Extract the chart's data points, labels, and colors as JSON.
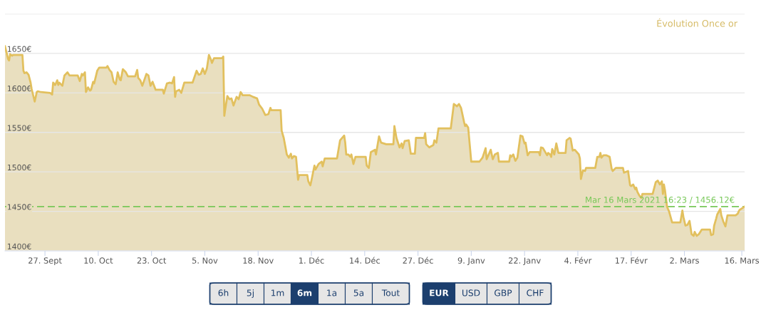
{
  "chart_data": {
    "type": "area",
    "title": "Évolution Once or",
    "color": "#e2c05e",
    "grid": "y",
    "xlim": [
      "2020-09-17T06:00",
      "2021-03-16T16:23"
    ],
    "ylim": [
      1400,
      1700
    ],
    "xticks": [
      {
        "value": "2020-09-27",
        "label": "27. Sept"
      },
      {
        "value": "2020-10-10",
        "label": "10. Oct"
      },
      {
        "value": "2020-10-23",
        "label": "23. Oct"
      },
      {
        "value": "2020-11-05",
        "label": "5. Nov"
      },
      {
        "value": "2020-11-18",
        "label": "18. Nov"
      },
      {
        "value": "2020-12-01",
        "label": "1. Déc"
      },
      {
        "value": "2020-12-14",
        "label": "14. Déc"
      },
      {
        "value": "2020-12-27",
        "label": "27. Déc"
      },
      {
        "value": "2021-01-09",
        "label": "9. Janv"
      },
      {
        "value": "2021-01-22",
        "label": "22. Janv"
      },
      {
        "value": "2021-02-04",
        "label": "4. Févr"
      },
      {
        "value": "2021-02-17",
        "label": "17. Févr"
      },
      {
        "value": "2021-03-02",
        "label": "2. Mars"
      },
      {
        "value": "2021-03-16",
        "label": "16. Mars"
      }
    ],
    "yticks": [
      {
        "value": 1400,
        "label": "1400€"
      },
      {
        "value": 1450,
        "label": "1450€"
      },
      {
        "value": 1500,
        "label": "1500€"
      },
      {
        "value": 1550,
        "label": "1550€"
      },
      {
        "value": 1600,
        "label": "1600€"
      },
      {
        "value": 1650,
        "label": "1650€"
      },
      {
        "value": 1700,
        "label": null
      }
    ],
    "ref_lines": [
      {
        "axis": "y",
        "value": 1456.12,
        "label": "Mar 16 Mars 2021 16:23 / 1456.12€",
        "color": "#78c858",
        "line_style": "dashed"
      }
    ],
    "annotations": [
      "6h",
      "5j",
      "1m",
      "6m",
      "1a",
      "5a",
      "Tout",
      "EUR",
      "USD",
      "GBP",
      "CHF"
    ],
    "x": [
      "2020-09-17T06:00",
      "2020-09-18",
      "2020-09-18T06:00",
      "2020-09-18T12:00",
      "2020-09-19",
      "2020-09-19T06:00",
      "2020-09-21T12:00",
      "2020-09-21T18:00",
      "2020-09-22",
      "2020-09-22T12:00",
      "2020-09-23",
      "2020-09-23T12:00",
      "2020-09-23T18:00",
      "2020-09-24T12:00",
      "2020-09-25",
      "2020-09-25T06:00",
      "2020-09-26",
      "2020-09-28T06:00",
      "2020-09-28T18:00",
      "2020-09-29",
      "2020-09-29T12:00",
      "2020-09-30",
      "2020-09-30T06:00",
      "2020-09-30T12:00",
      "2020-10-01T06:00",
      "2020-10-01T18:00",
      "2020-10-02T12:00",
      "2020-10-03",
      "2020-10-05",
      "2020-10-05T12:00",
      "2020-10-06",
      "2020-10-06T06:00",
      "2020-10-06T18:00",
      "2020-10-07",
      "2020-10-07T12:00",
      "2020-10-08",
      "2020-10-08T06:00",
      "2020-10-08T18:00",
      "2020-10-09",
      "2020-10-09T18:00",
      "2020-10-10T06:00",
      "2020-10-12",
      "2020-10-12T06:00",
      "2020-10-12T18:00",
      "2020-10-13T06:00",
      "2020-10-13T18:00",
      "2020-10-14T06:00",
      "2020-10-14T18:00",
      "2020-10-15T06:00",
      "2020-10-15T12:00",
      "2020-10-16",
      "2020-10-16T18:00",
      "2020-10-17T06:00",
      "2020-10-19",
      "2020-10-19T12:00",
      "2020-10-19T18:00",
      "2020-10-20T06:00",
      "2020-10-20T18:00",
      "2020-10-21T18:00",
      "2020-10-22T06:00",
      "2020-10-22T18:00",
      "2020-10-23T06:00",
      "2020-10-24",
      "2020-10-25T18:00",
      "2020-10-26",
      "2020-10-26T18:00",
      "2020-10-27T12:00",
      "2020-10-28",
      "2020-10-28T12:00",
      "2020-10-28T18:00",
      "2020-10-29",
      "2020-10-29T18:00",
      "2020-10-30T06:00",
      "2020-10-31",
      "2020-11-02",
      "2020-11-03",
      "2020-11-03T12:00",
      "2020-11-04",
      "2020-11-04T12:00",
      "2020-11-05",
      "2020-11-05T12:00",
      "2020-11-06",
      "2020-11-06T12:00",
      "2020-11-06T18:00",
      "2020-11-07T06:00",
      "2020-11-09T06:00",
      "2020-11-09T12:00",
      "2020-11-09T18:00",
      "2020-11-10",
      "2020-11-10T12:00",
      "2020-11-11",
      "2020-11-11T12:00",
      "2020-11-12",
      "2020-11-12T18:00",
      "2020-11-13T06:00",
      "2020-11-13T18:00",
      "2020-11-14T06:00",
      "2020-11-16",
      "2020-11-16T18:00",
      "2020-11-17T18:00",
      "2020-11-18T06:00",
      "2020-11-19",
      "2020-11-19T18:00",
      "2020-11-20T12:00",
      "2020-11-21",
      "2020-11-21T06:00",
      "2020-11-23T12:00",
      "2020-11-23T18:00",
      "2020-11-24T06:00",
      "2020-11-25",
      "2020-11-25T12:00",
      "2020-11-26",
      "2020-11-26T06:00",
      "2020-11-26T18:00",
      "2020-11-27T06:00",
      "2020-11-27T18:00",
      "2020-11-28",
      "2020-11-30",
      "2020-11-30T06:00",
      "2020-11-30T18:00",
      "2020-12-01",
      "2020-12-01T18:00",
      "2020-12-02",
      "2020-12-02T18:00",
      "2020-12-03T12:00",
      "2020-12-03T18:00",
      "2020-12-04T06:00",
      "2020-12-07T06:00",
      "2020-12-08",
      "2020-12-09",
      "2020-12-09T06:00",
      "2020-12-09T12:00",
      "2020-12-10",
      "2020-12-10T12:00",
      "2020-12-10T18:00",
      "2020-12-11T06:00",
      "2020-12-11T18:00",
      "2020-12-14T06:00",
      "2020-12-14T12:00",
      "2020-12-15",
      "2020-12-15T12:00",
      "2020-12-16T12:00",
      "2020-12-16T18:00",
      "2020-12-17T12:00",
      "2020-12-18",
      "2020-12-19T06:00",
      "2020-12-21",
      "2020-12-21T06:00",
      "2020-12-21T18:00",
      "2020-12-22T12:00",
      "2020-12-23",
      "2020-12-23T06:00",
      "2020-12-23T18:00",
      "2020-12-24T18:00",
      "2020-12-25T06:00",
      "2020-12-26T06:00",
      "2020-12-26T12:00",
      "2020-12-28T12:00",
      "2020-12-28T18:00",
      "2020-12-29",
      "2020-12-29T18:00",
      "2020-12-30T18:00",
      "2020-12-31",
      "2020-12-31T12:00",
      "2021-01-01",
      "2021-01-04",
      "2021-01-04T18:00",
      "2021-01-05T12:00",
      "2021-01-06",
      "2021-01-06T12:00",
      "2021-01-07T06:00",
      "2021-01-07T12:00",
      "2021-01-07T18:00",
      "2021-01-08T06:00",
      "2021-01-09",
      "2021-01-11",
      "2021-01-11T18:00",
      "2021-01-12T12:00",
      "2021-01-12T18:00",
      "2021-01-13T18:00",
      "2021-01-14T06:00",
      "2021-01-14T18:00",
      "2021-01-15T12:00",
      "2021-01-15T18:00",
      "2021-01-18T06:00",
      "2021-01-18T12:00",
      "2021-01-18T18:00",
      "2021-01-19T06:00",
      "2021-01-19T18:00",
      "2021-01-20T06:00",
      "2021-01-21",
      "2021-01-21T12:00",
      "2021-01-22",
      "2021-01-22T06:00",
      "2021-01-22T18:00",
      "2021-01-23T06:00",
      "2021-01-25T12:00",
      "2021-01-25T18:00",
      "2021-01-26",
      "2021-01-26T12:00",
      "2021-01-27T12:00",
      "2021-01-27T18:00",
      "2021-01-28T06:00",
      "2021-01-28T12:00",
      "2021-01-28T18:00",
      "2021-01-29T06:00",
      "2021-01-29T18:00",
      "2021-01-30T06:00",
      "2021-02-01",
      "2021-02-01T06:00",
      "2021-02-02",
      "2021-02-02T06:00",
      "2021-02-02T18:00",
      "2021-02-03T06:00",
      "2021-02-04T06:00",
      "2021-02-04T12:00",
      "2021-02-04T18:00",
      "2021-02-05T06:00",
      "2021-02-05T18:00",
      "2021-02-06",
      "2021-02-08T06:00",
      "2021-02-08T18:00",
      "2021-02-09T06:00",
      "2021-02-09T12:00",
      "2021-02-09T18:00",
      "2021-02-10T06:00",
      "2021-02-11",
      "2021-02-11T18:00",
      "2021-02-12T06:00",
      "2021-02-12T12:00",
      "2021-02-13T06:00",
      "2021-02-15",
      "2021-02-15T06:00",
      "2021-02-16T06:00",
      "2021-02-16T18:00",
      "2021-02-17",
      "2021-02-17T12:00",
      "2021-02-18",
      "2021-02-18T06:00",
      "2021-02-18T12:00",
      "2021-02-19",
      "2021-02-19T12:00",
      "2021-02-19T18:00",
      "2021-02-22T06:00",
      "2021-02-22T12:00",
      "2021-02-23",
      "2021-02-23T12:00",
      "2021-02-24",
      "2021-02-24T12:00",
      "2021-02-24T18:00",
      "2021-02-25",
      "2021-02-25T06:00",
      "2021-02-25T18:00",
      "2021-02-26T06:00",
      "2021-02-27",
      "2021-03-01",
      "2021-03-01T12:00",
      "2021-03-01T18:00",
      "2021-03-02T06:00",
      "2021-03-02T18:00",
      "2021-03-03T06:00",
      "2021-03-03T18:00",
      "2021-03-04T06:00",
      "2021-03-04T12:00",
      "2021-03-05",
      "2021-03-05T12:00",
      "2021-03-06T06:00",
      "2021-03-08T06:00",
      "2021-03-08T12:00",
      "2021-03-09",
      "2021-03-09T06:00",
      "2021-03-09T18:00",
      "2021-03-10",
      "2021-03-10T18:00",
      "2021-03-11",
      "2021-03-11T12:00",
      "2021-03-12",
      "2021-03-12T12:00",
      "2021-03-14T12:00",
      "2021-03-15",
      "2021-03-15T06:00",
      "2021-03-15T12:00",
      "2021-03-16T16:23"
    ],
    "values": [
      1659,
      1643,
      1641,
      1649,
      1647,
      1648,
      1648,
      1628,
      1625,
      1626,
      1623,
      1613,
      1605,
      1589,
      1601,
      1602,
      1601,
      1600,
      1598,
      1613,
      1610,
      1616,
      1610,
      1613,
      1609,
      1622,
      1626,
      1622,
      1622,
      1615,
      1624,
      1622,
      1626,
      1601,
      1607,
      1603,
      1604,
      1614,
      1612,
      1628,
      1632,
      1632,
      1634,
      1629,
      1626,
      1614,
      1611,
      1626,
      1617,
      1616,
      1630,
      1626,
      1621,
      1621,
      1629,
      1619,
      1616,
      1609,
      1624,
      1622,
      1609,
      1614,
      1604,
      1604,
      1599,
      1612,
      1613,
      1612,
      1620,
      1595,
      1602,
      1604,
      1600,
      1613,
      1613,
      1628,
      1623,
      1624,
      1631,
      1624,
      1631,
      1648,
      1642,
      1638,
      1644,
      1644,
      1646,
      1571,
      1580,
      1596,
      1592,
      1593,
      1584,
      1595,
      1592,
      1601,
      1597,
      1597,
      1595,
      1593,
      1585,
      1580,
      1572,
      1573,
      1581,
      1578,
      1578,
      1552,
      1543,
      1522,
      1518,
      1523,
      1517,
      1520,
      1519,
      1490,
      1496,
      1496,
      1488,
      1483,
      1489,
      1508,
      1503,
      1510,
      1513,
      1507,
      1517,
      1517,
      1540,
      1546,
      1537,
      1522,
      1522,
      1519,
      1522,
      1510,
      1519,
      1519,
      1508,
      1505,
      1525,
      1528,
      1522,
      1545,
      1537,
      1535,
      1535,
      1558,
      1543,
      1531,
      1536,
      1530,
      1539,
      1540,
      1523,
      1523,
      1543,
      1543,
      1549,
      1535,
      1531,
      1534,
      1540,
      1537,
      1555,
      1555,
      1586,
      1583,
      1586,
      1581,
      1563,
      1558,
      1560,
      1556,
      1513,
      1513,
      1518,
      1530,
      1516,
      1528,
      1516,
      1522,
      1524,
      1513,
      1513,
      1521,
      1519,
      1522,
      1514,
      1518,
      1546,
      1545,
      1536,
      1537,
      1521,
      1525,
      1525,
      1521,
      1531,
      1530,
      1521,
      1524,
      1522,
      1519,
      1529,
      1522,
      1536,
      1524,
      1524,
      1540,
      1543,
      1542,
      1527,
      1528,
      1522,
      1517,
      1491,
      1502,
      1501,
      1505,
      1505,
      1519,
      1519,
      1524,
      1518,
      1521,
      1521,
      1519,
      1504,
      1501,
      1505,
      1505,
      1499,
      1501,
      1483,
      1482,
      1484,
      1478,
      1480,
      1475,
      1470,
      1467,
      1472,
      1472,
      1477,
      1487,
      1489,
      1484,
      1488,
      1472,
      1484,
      1477,
      1456,
      1450,
      1436,
      1436,
      1451,
      1443,
      1432,
      1433,
      1438,
      1421,
      1419,
      1424,
      1419,
      1421,
      1427,
      1427,
      1420,
      1421,
      1432,
      1441,
      1446,
      1453,
      1445,
      1437,
      1431,
      1445,
      1445,
      1447,
      1450,
      1452,
      1456.12
    ]
  }
}
